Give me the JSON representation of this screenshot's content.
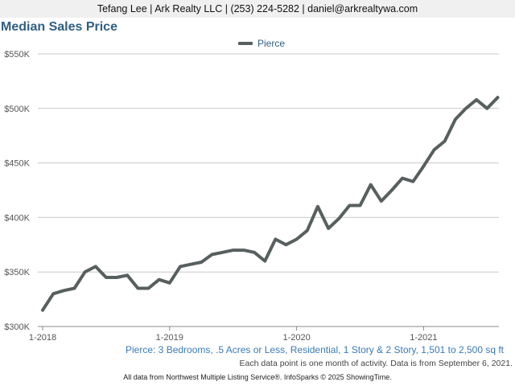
{
  "header": {
    "contact_line": "Tefang Lee | Ark Realty LLC | (253) 224-5282 | daniel@arkrealtywa.com"
  },
  "chart_data": {
    "type": "line",
    "title": "Median Sales Price",
    "xlabel": "",
    "ylabel": "",
    "legend_position": "top-center",
    "grid": true,
    "ylim": [
      300000,
      550000
    ],
    "y_ticks": [
      {
        "value": 300000,
        "label": "$300K"
      },
      {
        "value": 350000,
        "label": "$350K"
      },
      {
        "value": 400000,
        "label": "$400K"
      },
      {
        "value": 450000,
        "label": "$450K"
      },
      {
        "value": 500000,
        "label": "$500K"
      },
      {
        "value": 550000,
        "label": "$550K"
      }
    ],
    "x_ticks": [
      {
        "value": "2018-01",
        "label": "1-2018"
      },
      {
        "value": "2019-01",
        "label": "1-2019"
      },
      {
        "value": "2020-01",
        "label": "1-2020"
      },
      {
        "value": "2021-01",
        "label": "1-2021"
      }
    ],
    "x": [
      "2018-01",
      "2018-02",
      "2018-03",
      "2018-04",
      "2018-05",
      "2018-06",
      "2018-07",
      "2018-08",
      "2018-09",
      "2018-10",
      "2018-11",
      "2018-12",
      "2019-01",
      "2019-02",
      "2019-03",
      "2019-04",
      "2019-05",
      "2019-06",
      "2019-07",
      "2019-08",
      "2019-09",
      "2019-10",
      "2019-11",
      "2019-12",
      "2020-01",
      "2020-02",
      "2020-03",
      "2020-04",
      "2020-05",
      "2020-06",
      "2020-07",
      "2020-08",
      "2020-09",
      "2020-10",
      "2020-11",
      "2020-12",
      "2021-01",
      "2021-02",
      "2021-03",
      "2021-04",
      "2021-05",
      "2021-06",
      "2021-07",
      "2021-08"
    ],
    "series": [
      {
        "name": "Pierce",
        "color": "#575f5f",
        "values": [
          315000,
          330000,
          333000,
          335000,
          350000,
          355000,
          345000,
          345000,
          347000,
          335000,
          335000,
          343000,
          340000,
          355000,
          357000,
          359000,
          366000,
          368000,
          370000,
          370000,
          368000,
          360000,
          380000,
          375000,
          380000,
          388000,
          410000,
          390000,
          399000,
          411000,
          411000,
          430000,
          415000,
          425000,
          436000,
          433000,
          447000,
          462000,
          470000,
          490000,
          500000,
          508000,
          500000,
          510000
        ]
      }
    ]
  },
  "footer": {
    "description": "Pierce: 3 Bedrooms, .5 Acres or Less, Residential, 1 Story & 2 Story, 1,501 to 2,500 sq ft",
    "note": "Each data point is one month of activity. Data is from September 6, 2021.",
    "source": "All data from Northwest Multiple Listing Service®. InfoSparks © 2025 ShowingTime."
  }
}
